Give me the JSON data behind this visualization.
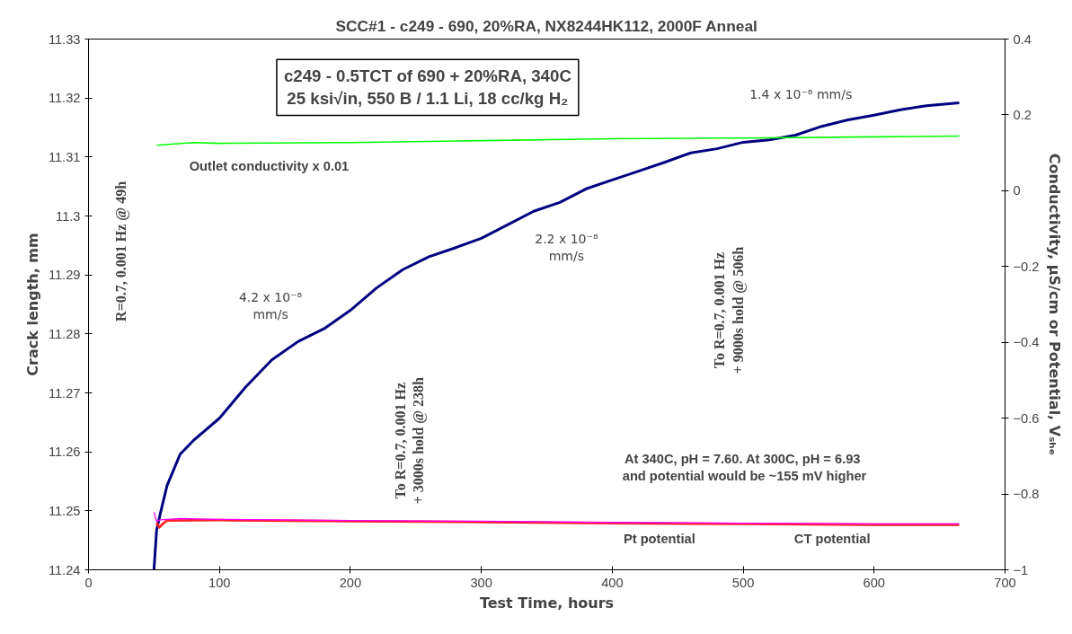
{
  "chart_data": {
    "type": "line",
    "title": "SCC#1 - c249 - 690, 20%RA, NX8244HK112, 2000F Anneal",
    "xlabel": "Test Time, hours",
    "ylabel": "Crack length, mm",
    "y2label": "Conductivity, µS/cm or Potential, Vₛₕₑ",
    "xlim": [
      0,
      700
    ],
    "xticks": [
      0,
      100,
      200,
      300,
      400,
      500,
      600,
      700
    ],
    "ylim": [
      11.24,
      11.33
    ],
    "yticks": [
      11.24,
      11.25,
      11.26,
      11.27,
      11.28,
      11.29,
      {
        "value": 11.3,
        "label": "11.3"
      },
      11.31,
      11.32,
      11.33
    ],
    "y2lim": [
      -1,
      0.4
    ],
    "y2ticks": [
      -1,
      -0.8,
      -0.6,
      -0.4,
      -0.2,
      0,
      0.2,
      0.4
    ],
    "grid": false,
    "marker": "none",
    "line_style": "solid",
    "series": [
      {
        "color": "#000080",
        "x": [
          50,
          52,
          55,
          60,
          70,
          80,
          100,
          120,
          140,
          160,
          180,
          200,
          220,
          240,
          260,
          280,
          300,
          320,
          340,
          360,
          380,
          400,
          420,
          440,
          460,
          480,
          500,
          520,
          540,
          560,
          580,
          600,
          620,
          640,
          665
        ],
        "values": [
          11.24,
          11.2467,
          11.2497,
          11.2543,
          11.2596,
          11.2619,
          11.2657,
          11.271,
          11.2756,
          11.2787,
          11.2809,
          11.284,
          11.2878,
          11.2909,
          11.2931,
          11.2946,
          11.2962,
          11.2985,
          11.3008,
          11.3023,
          11.3046,
          11.3061,
          11.3076,
          11.3091,
          11.3107,
          11.3114,
          11.3125,
          11.3129,
          11.3137,
          11.3152,
          11.3163,
          11.3171,
          11.318,
          11.3187,
          11.3192
        ]
      },
      {
        "name": "Outlet conductivity x 0.01",
        "color": "#00ff00",
        "axis": "y2",
        "x": [
          52,
          80,
          100,
          200,
          300,
          400,
          500,
          600,
          665
        ],
        "values": [
          0.12,
          0.127,
          0.125,
          0.127,
          0.132,
          0.137,
          0.139,
          0.142,
          0.144
        ]
      },
      {
        "name": "CT potential",
        "color": "#ff2020",
        "axis": "y2",
        "x": [
          52,
          54,
          57,
          60,
          100,
          200,
          300,
          400,
          500,
          600,
          665
        ],
        "values": [
          -0.876,
          -0.888,
          -0.878,
          -0.87,
          -0.869,
          -0.872,
          -0.874,
          -0.877,
          -0.879,
          -0.881,
          -0.881
        ]
      },
      {
        "name": "Pt potential",
        "color": "#ff00ff",
        "axis": "y2",
        "x": [
          50,
          52,
          55,
          60,
          70,
          100,
          200,
          300,
          400,
          500,
          600,
          665
        ],
        "values": [
          -0.848,
          -0.872,
          -0.868,
          -0.867,
          -0.865,
          -0.867,
          -0.87,
          -0.872,
          -0.875,
          -0.877,
          -0.879,
          -0.879
        ]
      }
    ],
    "annotations": [
      "c249 - 0.5TCT of 690 + 20%RA, 340C\n25 ksi√in, 550 B / 1.1 Li, 18 cc/kg H₂",
      "4.2 x 10⁻⁸\nmm/s",
      "2.2 x 10⁻⁸\nmm/s",
      "1.4 x 10⁻⁸ mm/s",
      "R=0.7, 0.001 Hz @ 49h",
      "To R=0.7, 0.001 Hz\n+ 3000s hold @ 238h",
      "To R=0.7, 0.001 Hz\n+ 9000s hold @ 506h",
      "At 340C, pH = 7.60.  At 300C, pH = 6.93\nand potential would be ~155 mV higher"
    ]
  }
}
